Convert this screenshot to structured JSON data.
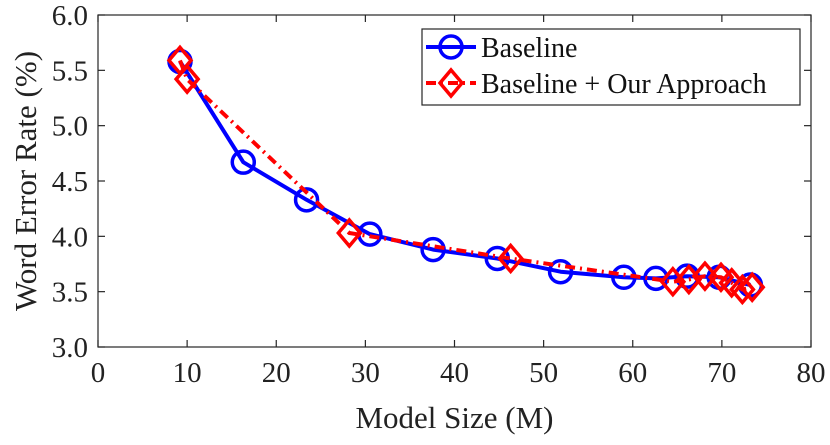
{
  "chart_data": {
    "type": "line",
    "title": "",
    "xlabel": "Model Size (M)",
    "ylabel": "Word Error Rate (%)",
    "xlim": [
      0,
      80
    ],
    "ylim": [
      3.0,
      6.0
    ],
    "xticks": [
      0,
      10,
      20,
      30,
      40,
      50,
      60,
      70,
      80
    ],
    "yticks": [
      3.0,
      3.5,
      4.0,
      4.5,
      5.0,
      5.5,
      6.0
    ],
    "xtick_labels": [
      "0",
      "10",
      "20",
      "30",
      "40",
      "50",
      "60",
      "70",
      "80"
    ],
    "ytick_labels": [
      "3.0",
      "3.5",
      "4.0",
      "4.5",
      "5.0",
      "5.5",
      "6.0"
    ],
    "grid": false,
    "legend_position": "top-right",
    "series": [
      {
        "name": "Baseline",
        "color": "#0000ff",
        "marker": "circle",
        "line_style": "solid",
        "x": [
          9.2,
          16.3,
          23.4,
          30.5,
          37.6,
          44.8,
          51.9,
          59.0,
          62.6,
          66.1,
          69.7,
          73.2
        ],
        "y": [
          5.58,
          4.67,
          4.33,
          4.02,
          3.88,
          3.8,
          3.68,
          3.63,
          3.62,
          3.64,
          3.63,
          3.56
        ]
      },
      {
        "name": "Baseline + Our Approach",
        "color": "#ff0000",
        "marker": "diamond",
        "line_style": "dash-dot",
        "x": [
          9.2,
          10.0,
          28.2,
          46.3,
          64.5,
          66.3,
          68.1,
          69.9,
          71.1,
          72.3,
          73.4
        ],
        "y": [
          5.59,
          5.42,
          4.03,
          3.8,
          3.59,
          3.61,
          3.64,
          3.63,
          3.58,
          3.52,
          3.54
        ]
      }
    ]
  }
}
